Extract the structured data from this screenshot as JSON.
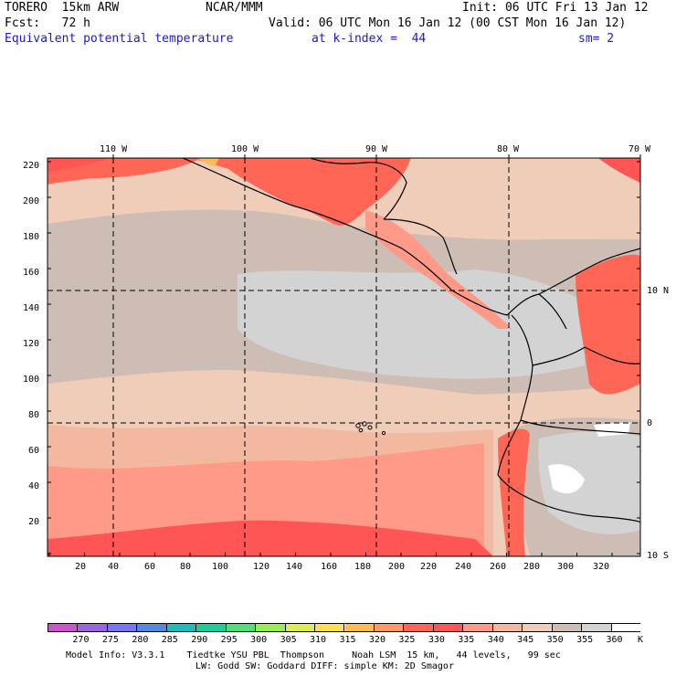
{
  "header": {
    "model": "TORERO  15km ARW",
    "center": "NCAR/MMM",
    "init": "Init: 06 UTC Fri 13 Jan 12",
    "fcst": "Fcst:   72 h",
    "valid": "Valid: 06 UTC Mon 16 Jan 12 (00 CST Mon 16 Jan 12)",
    "field": "Equivalent potential temperature",
    "level": "at k-index =  44",
    "smooth": "sm= 2"
  },
  "lon_labels": [
    "110 W",
    "100 W",
    "90 W",
    "80 W",
    "70 W"
  ],
  "lat_labels": [
    "10 N",
    "0",
    "10 S"
  ],
  "y_ticks": [
    "220",
    "200",
    "180",
    "160",
    "140",
    "120",
    "100",
    "80",
    "60",
    "40",
    "20"
  ],
  "x_ticks": [
    "20",
    "40",
    "60",
    "80",
    "100",
    "120",
    "140",
    "160",
    "180",
    "200",
    "220",
    "240",
    "260",
    "280",
    "300",
    "320"
  ],
  "colorbar": {
    "colors": [
      "#cc55cc",
      "#9966dd",
      "#7777ee",
      "#5588dd",
      "#22bbbb",
      "#22cc99",
      "#55dd77",
      "#99ee55",
      "#ddee55",
      "#ffdd55",
      "#ffbb55",
      "#ff9966",
      "#ff6655",
      "#ff5555",
      "#ff9988",
      "#f2b8a0",
      "#f0cdb8",
      "#cdbdb5",
      "#d3d3d3",
      "#ffffff"
    ],
    "labels": [
      "270",
      "275",
      "280",
      "285",
      "290",
      "295",
      "300",
      "305",
      "310",
      "315",
      "320",
      "325",
      "330",
      "335",
      "340",
      "345",
      "350",
      "355",
      "360"
    ],
    "unit": "K"
  },
  "footer": {
    "line1": "Model Info: V3.3.1    Tiedtke YSU PBL  Thompson     Noah LSM  15 km,   44 levels,   99 sec",
    "line2": "LW: Godd SW: Goddard DIFF: simple KM: 2D Smagor"
  }
}
